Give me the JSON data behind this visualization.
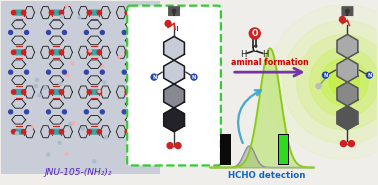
{
  "label_jnu": "JNU-105-(NH₂)₂",
  "label_aminal": "aminal formation",
  "label_hcho_detect": "HCHO detection",
  "arrow_color": "#7733AA",
  "aminal_color": "#CC0000",
  "hcho_detect_color": "#1166BB",
  "background_color": "#f0eeea",
  "green_glow_color": "#bbee22",
  "lock_color": "#444444",
  "curve_gray_color": "#888888",
  "curve_green_color": "#99dd22",
  "curve_blue_color": "#6699cc",
  "arrow_curve_color": "#44AACC",
  "mol_box_border": "#33CC33",
  "mol_bg": "#ffffff",
  "left_bg": "#c8cdd8"
}
